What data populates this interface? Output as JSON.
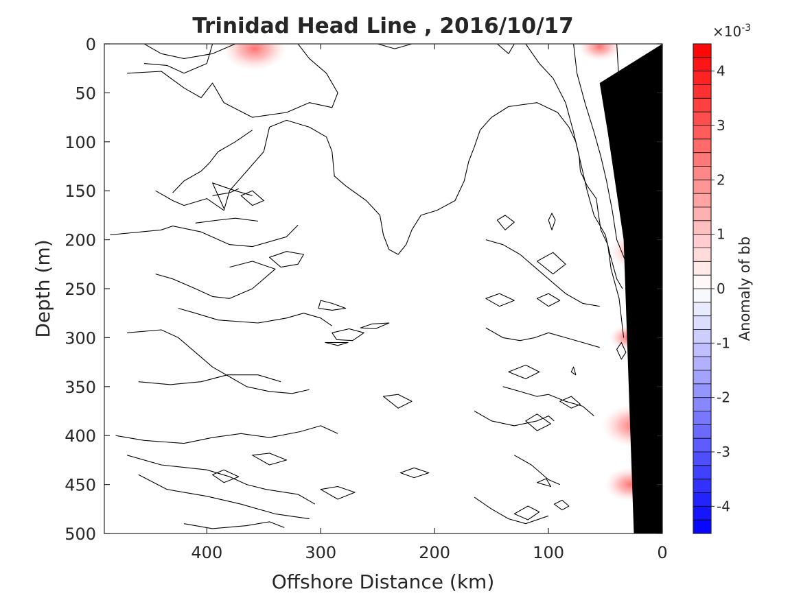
{
  "chart_data": {
    "type": "contour",
    "title": "Trinidad Head Line , 2016/10/17",
    "xlabel": "Offshore Distance (km)",
    "ylabel": "Depth (m)",
    "xlim": [
      490,
      0
    ],
    "ylim": [
      0,
      500
    ],
    "x_reversed": true,
    "y_reversed": true,
    "x_ticks": [
      400,
      300,
      200,
      100,
      0
    ],
    "y_ticks": [
      0,
      50,
      100,
      150,
      200,
      250,
      300,
      350,
      400,
      450,
      500
    ],
    "x_tick_labels": [
      "400",
      "300",
      "200",
      "100",
      "0"
    ],
    "y_tick_labels": [
      "0",
      "50",
      "100",
      "150",
      "200",
      "250",
      "300",
      "350",
      "400",
      "450",
      "500"
    ],
    "colorbar": {
      "label": "Anomaly of bb",
      "range": [
        -0.0045,
        0.0045
      ],
      "exponent_label": "×10",
      "exponent": "-3",
      "ticks": [
        4,
        3,
        2,
        1,
        0,
        -1,
        -2,
        -3,
        -4
      ],
      "tick_labels": [
        "4",
        "3",
        "2",
        "1",
        "0",
        "-1",
        "-2",
        "-3",
        "-4"
      ],
      "levels": 36,
      "colormap": "blue-white-red",
      "color_negative": "#0000ff",
      "color_zero": "#ffffff",
      "color_positive": "#ff0000"
    },
    "contour_level": 0,
    "bottom_topography": {
      "color": "#000000",
      "points": [
        [
          0,
          0
        ],
        [
          0,
          500
        ],
        [
          25,
          500
        ],
        [
          28,
          400
        ],
        [
          34,
          200
        ],
        [
          48,
          90
        ],
        [
          55,
          40
        ],
        [
          0,
          0
        ]
      ]
    },
    "positive_patches": [
      {
        "x": 358,
        "y": 5,
        "peak": 0.001
      },
      {
        "x": 55,
        "y": 3,
        "peak": 0.0005
      },
      {
        "x": 20,
        "y": 212,
        "peak": 0.0009
      },
      {
        "x": 25,
        "y": 390,
        "peak": 0.001
      },
      {
        "x": 28,
        "y": 450,
        "peak": 0.0007
      },
      {
        "x": 30,
        "y": 300,
        "peak": 0.0004
      }
    ],
    "contours": [
      [
        [
          455,
          0
        ],
        [
          440,
          10
        ],
        [
          420,
          15
        ],
        [
          395,
          10
        ],
        [
          375,
          0
        ]
      ],
      [
        [
          455,
          20
        ],
        [
          435,
          22
        ],
        [
          420,
          30
        ],
        [
          400,
          20
        ],
        [
          395,
          0
        ]
      ],
      [
        [
          470,
          30
        ],
        [
          440,
          28
        ],
        [
          420,
          45
        ],
        [
          405,
          55
        ],
        [
          395,
          40
        ],
        [
          385,
          60
        ],
        [
          360,
          75
        ],
        [
          330,
          70
        ],
        [
          310,
          60
        ],
        [
          290,
          65
        ],
        [
          285,
          50
        ],
        [
          295,
          30
        ],
        [
          310,
          15
        ],
        [
          320,
          0
        ]
      ],
      [
        [
          445,
          150
        ],
        [
          430,
          160
        ],
        [
          420,
          165
        ],
        [
          400,
          158
        ],
        [
          385,
          170
        ],
        [
          380,
          150
        ],
        [
          365,
          130
        ],
        [
          350,
          110
        ],
        [
          345,
          85
        ],
        [
          330,
          78
        ],
        [
          310,
          85
        ],
        [
          295,
          95
        ],
        [
          290,
          110
        ],
        [
          288,
          135
        ],
        [
          278,
          145
        ],
        [
          260,
          160
        ],
        [
          248,
          175
        ],
        [
          245,
          195
        ],
        [
          240,
          210
        ],
        [
          232,
          215
        ],
        [
          225,
          205
        ],
        [
          220,
          190
        ],
        [
          212,
          175
        ],
        [
          198,
          170
        ],
        [
          182,
          160
        ],
        [
          174,
          140
        ],
        [
          170,
          120
        ],
        [
          165,
          105
        ],
        [
          160,
          88
        ],
        [
          150,
          75
        ],
        [
          135,
          64
        ],
        [
          110,
          60
        ],
        [
          92,
          70
        ],
        [
          82,
          85
        ],
        [
          76,
          100
        ],
        [
          73,
          115
        ],
        [
          72,
          130
        ],
        [
          66,
          145
        ],
        [
          58,
          158
        ],
        [
          56,
          175
        ],
        [
          54,
          190
        ],
        [
          48,
          205
        ],
        [
          45,
          230
        ],
        [
          38,
          260
        ],
        [
          34,
          300
        ]
      ],
      [
        [
          250,
          0
        ],
        [
          235,
          5
        ],
        [
          220,
          0
        ]
      ],
      [
        [
          145,
          0
        ],
        [
          135,
          10
        ],
        [
          130,
          0
        ]
      ],
      [
        [
          120,
          0
        ],
        [
          108,
          20
        ],
        [
          96,
          35
        ],
        [
          85,
          60
        ],
        [
          78,
          90
        ],
        [
          72,
          120
        ],
        [
          66,
          150
        ],
        [
          60,
          175
        ],
        [
          50,
          195
        ],
        [
          46,
          215
        ],
        [
          40,
          240
        ],
        [
          35,
          250
        ]
      ],
      [
        [
          78,
          0
        ],
        [
          75,
          30
        ],
        [
          68,
          60
        ],
        [
          60,
          90
        ],
        [
          54,
          115
        ],
        [
          49,
          140
        ],
        [
          44,
          170
        ],
        [
          40,
          200
        ],
        [
          33,
          220
        ],
        [
          27,
          232
        ]
      ],
      [
        [
          40,
          0
        ],
        [
          38,
          40
        ],
        [
          35,
          80
        ],
        [
          32,
          110
        ],
        [
          28,
          140
        ],
        [
          24,
          170
        ],
        [
          20,
          200
        ]
      ],
      [
        [
          485,
          195
        ],
        [
          440,
          190
        ],
        [
          430,
          186
        ],
        [
          405,
          192
        ],
        [
          380,
          205
        ],
        [
          360,
          207
        ],
        [
          330,
          197
        ],
        [
          320,
          185
        ]
      ],
      [
        [
          360,
          88
        ],
        [
          375,
          100
        ],
        [
          390,
          110
        ],
        [
          398,
          122
        ],
        [
          405,
          130
        ],
        [
          420,
          140
        ],
        [
          430,
          152
        ]
      ],
      [
        [
          410,
          183
        ],
        [
          390,
          180
        ],
        [
          375,
          178
        ],
        [
          355,
          181
        ]
      ],
      [
        [
          360,
          155
        ],
        [
          375,
          150
        ],
        [
          395,
          142
        ],
        [
          385,
          168
        ]
      ],
      [
        [
          395,
          155
        ],
        [
          380,
          152
        ],
        [
          372,
          148
        ]
      ],
      [
        [
          445,
          235
        ],
        [
          430,
          240
        ],
        [
          410,
          250
        ],
        [
          395,
          258
        ],
        [
          380,
          260
        ],
        [
          360,
          250
        ],
        [
          350,
          240
        ],
        [
          340,
          230
        ],
        [
          360,
          222
        ],
        [
          380,
          228
        ]
      ],
      [
        [
          425,
          270
        ],
        [
          410,
          275
        ],
        [
          390,
          282
        ],
        [
          355,
          285
        ],
        [
          330,
          280
        ],
        [
          315,
          275
        ],
        [
          300,
          280
        ],
        [
          290,
          288
        ]
      ],
      [
        [
          470,
          295
        ],
        [
          440,
          292
        ],
        [
          425,
          300
        ],
        [
          410,
          315
        ],
        [
          395,
          330
        ],
        [
          380,
          340
        ],
        [
          365,
          350
        ],
        [
          345,
          355
        ],
        [
          325,
          357
        ],
        [
          310,
          353
        ]
      ],
      [
        [
          480,
          400
        ],
        [
          455,
          405
        ],
        [
          420,
          408
        ],
        [
          395,
          402
        ],
        [
          370,
          398
        ],
        [
          345,
          402
        ],
        [
          318,
          396
        ],
        [
          300,
          390
        ],
        [
          285,
          398
        ]
      ],
      [
        [
          470,
          420
        ],
        [
          440,
          430
        ],
        [
          400,
          435
        ],
        [
          380,
          442
        ],
        [
          365,
          450
        ],
        [
          348,
          455
        ],
        [
          320,
          460
        ],
        [
          305,
          470
        ]
      ],
      [
        [
          460,
          345
        ],
        [
          432,
          348
        ],
        [
          405,
          345
        ],
        [
          382,
          338
        ],
        [
          355,
          338
        ],
        [
          335,
          345
        ]
      ],
      [
        [
          460,
          440
        ],
        [
          435,
          455
        ],
        [
          400,
          462
        ],
        [
          370,
          470
        ],
        [
          340,
          480
        ],
        [
          310,
          485
        ]
      ],
      [
        [
          420,
          490
        ],
        [
          395,
          495
        ],
        [
          365,
          492
        ],
        [
          345,
          488
        ],
        [
          332,
          494
        ]
      ],
      [
        [
          165,
          375
        ],
        [
          150,
          385
        ],
        [
          130,
          390
        ],
        [
          110,
          385
        ],
        [
          100,
          380
        ],
        [
          95,
          385
        ]
      ],
      [
        [
          155,
          200
        ],
        [
          140,
          205
        ],
        [
          125,
          215
        ],
        [
          115,
          225
        ],
        [
          105,
          235
        ],
        [
          95,
          245
        ],
        [
          85,
          255
        ],
        [
          70,
          265
        ],
        [
          55,
          268
        ]
      ],
      [
        [
          155,
          290
        ],
        [
          140,
          300
        ],
        [
          125,
          303
        ],
        [
          112,
          300
        ],
        [
          100,
          295
        ],
        [
          85,
          300
        ],
        [
          70,
          305
        ],
        [
          55,
          310
        ]
      ],
      [
        [
          140,
          350
        ],
        [
          125,
          355
        ],
        [
          110,
          360
        ],
        [
          100,
          358
        ],
        [
          85,
          365
        ],
        [
          70,
          370
        ],
        [
          60,
          380
        ]
      ],
      [
        [
          130,
          420
        ],
        [
          115,
          430
        ],
        [
          100,
          445
        ],
        [
          90,
          450
        ]
      ],
      [
        [
          165,
          463
        ],
        [
          150,
          475
        ],
        [
          135,
          485
        ],
        [
          120,
          490
        ],
        [
          100,
          482
        ]
      ]
    ],
    "closed_contours": [
      [
        [
          370,
          155
        ],
        [
          360,
          150
        ],
        [
          350,
          160
        ],
        [
          360,
          165
        ]
      ],
      [
        [
          315,
          215
        ],
        [
          330,
          212
        ],
        [
          345,
          218
        ],
        [
          335,
          228
        ],
        [
          320,
          225
        ]
      ],
      [
        [
          300,
          262
        ],
        [
          290,
          265
        ],
        [
          278,
          270
        ],
        [
          290,
          272
        ],
        [
          302,
          270
        ]
      ],
      [
        [
          290,
          295
        ],
        [
          275,
          291
        ],
        [
          262,
          295
        ],
        [
          272,
          303
        ],
        [
          286,
          302
        ]
      ],
      [
        [
          296,
          305
        ],
        [
          285,
          308
        ],
        [
          276,
          305
        ]
      ],
      [
        [
          265,
          290
        ],
        [
          255,
          286
        ],
        [
          240,
          285
        ],
        [
          252,
          291
        ]
      ],
      [
        [
          360,
          420
        ],
        [
          345,
          418
        ],
        [
          330,
          425
        ],
        [
          345,
          430
        ]
      ],
      [
        [
          395,
          440
        ],
        [
          385,
          435
        ],
        [
          372,
          442
        ],
        [
          385,
          448
        ]
      ],
      [
        [
          300,
          455
        ],
        [
          285,
          452
        ],
        [
          270,
          458
        ],
        [
          285,
          465
        ]
      ],
      [
        [
          245,
          360
        ],
        [
          232,
          358
        ],
        [
          220,
          365
        ],
        [
          232,
          372
        ]
      ],
      [
        [
          230,
          438
        ],
        [
          218,
          433
        ],
        [
          205,
          438
        ],
        [
          218,
          443
        ]
      ],
      [
        [
          145,
          180
        ],
        [
          138,
          175
        ],
        [
          130,
          182
        ],
        [
          138,
          190
        ]
      ],
      [
        [
          100,
          180
        ],
        [
          97,
          173
        ],
        [
          94,
          180
        ],
        [
          97,
          190
        ]
      ],
      [
        [
          110,
          222
        ],
        [
          96,
          213
        ],
        [
          85,
          225
        ],
        [
          96,
          235
        ]
      ],
      [
        [
          110,
          260
        ],
        [
          100,
          255
        ],
        [
          90,
          262
        ],
        [
          100,
          268
        ]
      ],
      [
        [
          155,
          260
        ],
        [
          143,
          255
        ],
        [
          130,
          262
        ],
        [
          143,
          268
        ]
      ],
      [
        [
          135,
          335
        ],
        [
          120,
          328
        ],
        [
          108,
          335
        ],
        [
          120,
          342
        ]
      ],
      [
        [
          80,
          335
        ],
        [
          78,
          330
        ],
        [
          76,
          338
        ]
      ],
      [
        [
          90,
          365
        ],
        [
          80,
          360
        ],
        [
          72,
          368
        ],
        [
          80,
          372
        ]
      ],
      [
        [
          120,
          385
        ],
        [
          110,
          378
        ],
        [
          98,
          388
        ],
        [
          110,
          395
        ]
      ],
      [
        [
          40,
          312
        ],
        [
          36,
          305
        ],
        [
          32,
          315
        ],
        [
          36,
          322
        ]
      ],
      [
        [
          130,
          480
        ],
        [
          118,
          472
        ],
        [
          108,
          478
        ],
        [
          118,
          486
        ]
      ],
      [
        [
          95,
          470
        ],
        [
          88,
          466
        ],
        [
          82,
          472
        ],
        [
          88,
          476
        ]
      ],
      [
        [
          110,
          448
        ],
        [
          102,
          444
        ],
        [
          98,
          452
        ]
      ]
    ]
  }
}
